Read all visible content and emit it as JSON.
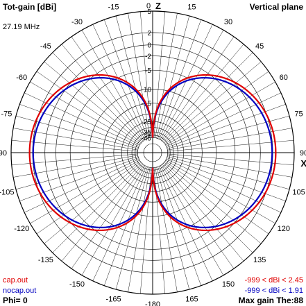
{
  "header": {
    "title_left": "Tot-gain [dBi]",
    "title_right": "Vertical plane",
    "frequency": "27.19 MHz"
  },
  "legend": {
    "cap_label": "cap.out",
    "nocap_label": "nocap.out",
    "cap_range": "-999 < dBi < 2.45",
    "nocap_range": "-999 < dBi < 1.91",
    "phi": "Phi= 0",
    "max_gain": "Max gain The:88"
  },
  "colors": {
    "cap": "#e00000",
    "nocap": "#0000c0",
    "grid": "#000000"
  },
  "chart_data": {
    "type": "polar",
    "axis_top_label": "Z",
    "axis_right_label": "XY",
    "angle_labels": [
      "0",
      "15",
      "30",
      "45",
      "60",
      "75",
      "90",
      "105",
      "120",
      "135",
      "150",
      "165",
      "-180",
      "-165",
      "-150",
      "-135",
      "-120",
      "-105",
      "-90",
      "-75",
      "-60",
      "-45",
      "-30",
      "-15"
    ],
    "angles": [
      0,
      15,
      30,
      45,
      60,
      75,
      90,
      105,
      120,
      135,
      150,
      165,
      180,
      -165,
      -150,
      -135,
      -120,
      -105,
      -90,
      -75,
      -60,
      -45,
      -30,
      -15
    ],
    "radial_ticks": [
      5,
      2,
      0,
      -2,
      -5,
      -10,
      -15,
      -25,
      -35,
      -45
    ],
    "radial_tick_labels": [
      "5",
      "2",
      "0",
      "-2",
      "-5",
      "-10",
      "-15",
      "-25",
      "-35",
      "-45"
    ],
    "rings_db": [
      5,
      2,
      0,
      -2,
      -5,
      -10,
      -15,
      -20,
      -25,
      -30,
      -35,
      -40,
      -45
    ],
    "series": [
      {
        "name": "cap.out",
        "max_dbi": 2.45,
        "pattern": "dipole"
      },
      {
        "name": "nocap.out",
        "max_dbi": 1.91,
        "pattern": "dipole"
      }
    ]
  }
}
